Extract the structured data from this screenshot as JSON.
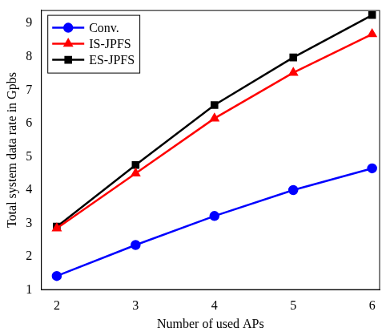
{
  "chart_data": {
    "type": "line",
    "x_label": "Number of used APs",
    "y_label": "Total system data rate in Gpbs",
    "x": [
      2,
      3,
      4,
      5,
      6
    ],
    "series": [
      {
        "name": "Conv.",
        "color": "#0000ff",
        "marker": "circle",
        "values": [
          1.42,
          2.35,
          3.22,
          4.0,
          4.65
        ]
      },
      {
        "name": "IS-JPFS",
        "color": "#ff0000",
        "marker": "triangle",
        "values": [
          2.85,
          4.5,
          6.15,
          7.52,
          8.68
        ]
      },
      {
        "name": "ES-JPFS",
        "color": "#000000",
        "marker": "square",
        "values": [
          2.9,
          4.75,
          6.55,
          7.98,
          9.25
        ]
      }
    ],
    "xlim": [
      1.8,
      6.1
    ],
    "xticks": [
      2,
      3,
      4,
      5,
      6
    ],
    "ylim": [
      1,
      9.4
    ],
    "yticks": [
      1,
      2,
      3,
      4,
      5,
      6,
      7,
      8,
      9
    ],
    "grid": false,
    "legend": "top-left"
  }
}
